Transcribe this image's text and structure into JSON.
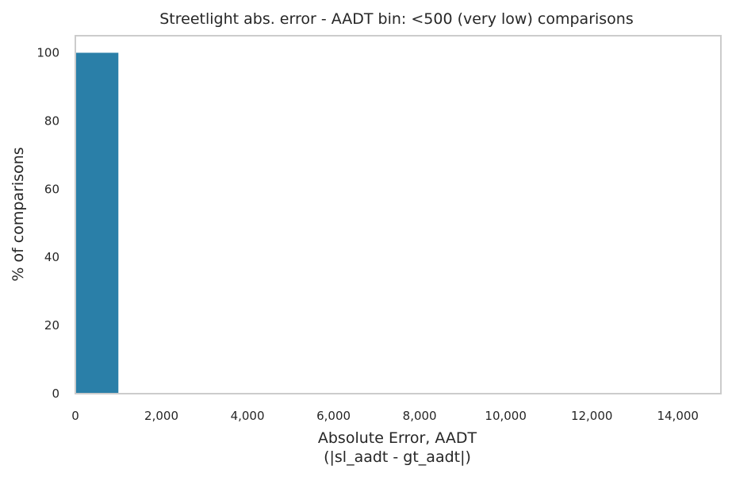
{
  "chart_data": {
    "type": "bar",
    "title": "Streetlight abs. error - AADT bin: <500 (very low) comparisons",
    "xlabel_line1": "Absolute Error, AADT",
    "xlabel_line2": "(|sl_aadt - gt_aadt|)",
    "ylabel": "% of comparisons",
    "xlim": [
      0,
      15000
    ],
    "ylim": [
      0,
      105
    ],
    "x_ticks": [
      0,
      2000,
      4000,
      6000,
      8000,
      10000,
      12000,
      14000
    ],
    "x_tick_labels": [
      "0",
      "2,000",
      "4,000",
      "6,000",
      "8,000",
      "10,000",
      "12,000",
      "14,000"
    ],
    "y_ticks": [
      0,
      20,
      40,
      60,
      80,
      100
    ],
    "y_tick_labels": [
      "0",
      "20",
      "40",
      "60",
      "80",
      "100"
    ],
    "bins": [
      {
        "start": 0,
        "end": 1000,
        "value": 100
      }
    ],
    "bar_color": "#2a7fa8",
    "grid": false,
    "frame_color": "#cccccc"
  }
}
